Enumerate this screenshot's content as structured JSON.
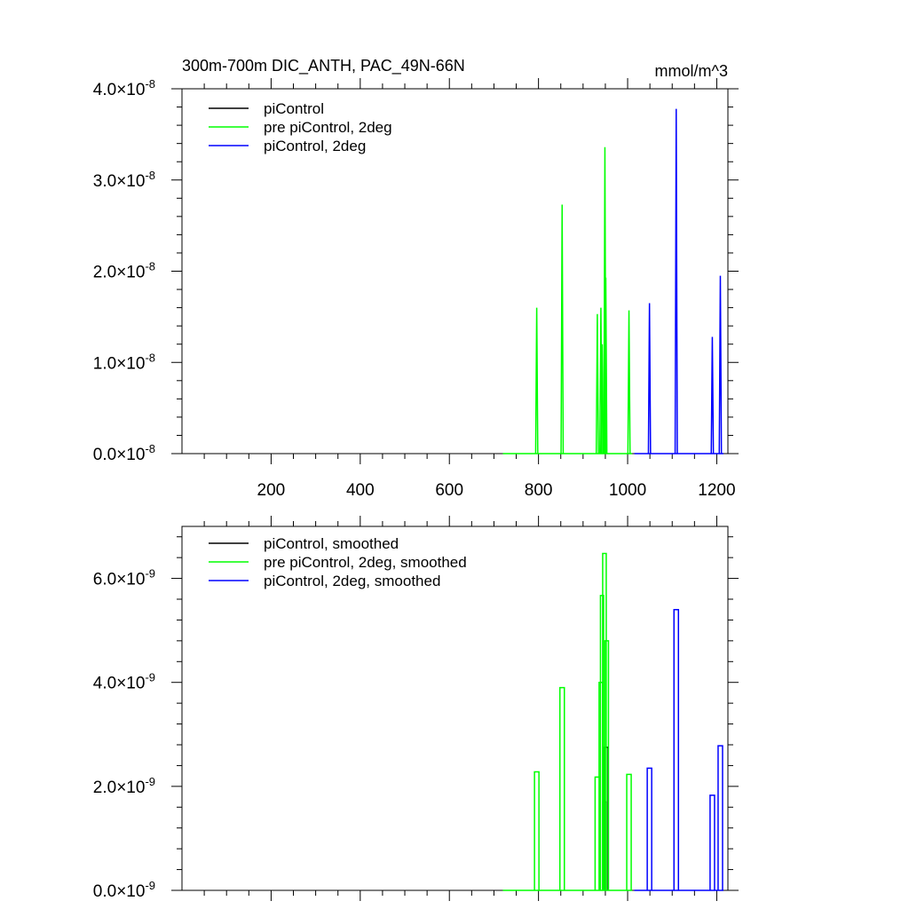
{
  "chart_data": [
    {
      "type": "line",
      "title": "300m-700m DIC_ANTH, PAC_49N-66N",
      "units": "mmol/m^3",
      "xlabel": "",
      "ylabel": "",
      "xlim": [
        0,
        1225
      ],
      "ylim": [
        0,
        4e-08
      ],
      "x_ticks": [
        200,
        400,
        600,
        800,
        1000,
        1200
      ],
      "x_tick_labels": [
        "200",
        "400",
        "600",
        "800",
        "1000",
        "1200"
      ],
      "y_ticks": [
        0,
        1e-08,
        2e-08,
        3e-08,
        4e-08
      ],
      "y_tick_mantissa": [
        "0.0",
        "1.0",
        "2.0",
        "3.0",
        "4.0"
      ],
      "y_tick_exponent": "-8",
      "legend_position": "top-left",
      "series": [
        {
          "name": "piControl",
          "color": "#000000",
          "x": [],
          "y": []
        },
        {
          "name": "pre piControl, 2deg",
          "color": "#00ff00",
          "spikes": [
            [
              796,
              1.6e-08
            ],
            [
              853,
              2.73e-08
            ],
            [
              932,
              1.53e-08
            ],
            [
              940,
              1.6e-08
            ],
            [
              943,
              1.2e-08
            ],
            [
              949,
              3.36e-08
            ],
            [
              951,
              1.93e-08
            ],
            [
              1003,
              1.57e-08
            ]
          ],
          "x_range": [
            720,
            1010
          ]
        },
        {
          "name": "piControl, 2deg",
          "color": "#0000ff",
          "spikes": [
            [
              1049,
              1.65e-08
            ],
            [
              1109,
              3.78e-08
            ],
            [
              1190,
              1.28e-08
            ],
            [
              1208,
              1.95e-08
            ]
          ],
          "x_range": [
            1015,
            1215
          ]
        }
      ]
    },
    {
      "type": "line",
      "title": "",
      "xlabel": "",
      "ylabel": "",
      "xlim": [
        0,
        1225
      ],
      "ylim": [
        0,
        7e-09
      ],
      "x_ticks": [
        200,
        400,
        600,
        800,
        1000,
        1200
      ],
      "x_tick_labels": [],
      "y_ticks": [
        0,
        2e-09,
        4e-09,
        6e-09
      ],
      "y_tick_mantissa": [
        "0.0",
        "2.0",
        "4.0",
        "6.0"
      ],
      "y_tick_exponent": "-9",
      "legend_position": "top-left",
      "series": [
        {
          "name": "piControl, smoothed",
          "color": "#000000",
          "blocks": [
            [
              944,
              952,
              1.7e-09
            ],
            [
              948,
              956,
              2.75e-09
            ]
          ],
          "x_range": [
            940,
            960
          ]
        },
        {
          "name": "pre piControl, 2deg, smoothed",
          "color": "#00ff00",
          "blocks": [
            [
              791,
              801,
              2.28e-09
            ],
            [
              848,
              858,
              3.9e-09
            ],
            [
              927,
              937,
              2.18e-09
            ],
            [
              936,
              944,
              4e-09
            ],
            [
              939,
              946,
              5.67e-09
            ],
            [
              944,
              952,
              6.48e-09
            ],
            [
              949,
              957,
              4.8e-09
            ],
            [
              998,
              1008,
              2.23e-09
            ]
          ],
          "x_range": [
            720,
            1010
          ]
        },
        {
          "name": "piControl, 2deg, smoothed",
          "color": "#0000ff",
          "blocks": [
            [
              1044,
              1054,
              2.35e-09
            ],
            [
              1104,
              1114,
              5.4e-09
            ],
            [
              1185,
              1195,
              1.83e-09
            ],
            [
              1203,
              1213,
              2.78e-09
            ]
          ],
          "x_range": [
            1015,
            1215
          ]
        }
      ]
    }
  ]
}
